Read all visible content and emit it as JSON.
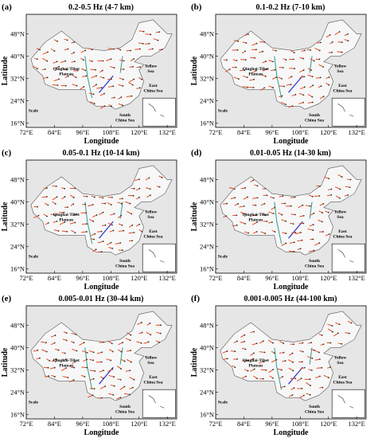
{
  "panels": [
    {
      "label": "(a)",
      "title": "0.2-0.5 Hz (4-7 km)"
    },
    {
      "label": "(b)",
      "title": "0.1-0.2 Hz (7-10 km)"
    },
    {
      "label": "(c)",
      "title": "0.05-0.1 Hz (10-14 km)"
    },
    {
      "label": "(d)",
      "title": "0.01-0.05 Hz (14-30 km)"
    },
    {
      "label": "(e)",
      "title": "0.005-0.01 Hz (30-44 km)"
    },
    {
      "label": "(f)",
      "title": "0.001-0.005 Hz (44-100 km)"
    }
  ],
  "axes": {
    "xlabel": "Longitude",
    "ylabel": "Latitude",
    "xticks": [
      "72°E",
      "84°E",
      "96°E",
      "108°E",
      "120°E",
      "132°E"
    ],
    "yticks": [
      "48°N",
      "40°N",
      "32°N",
      "24°N",
      "16°N"
    ]
  },
  "map_labels": {
    "plateau": [
      "Qinghai-Tibet",
      "Plateau"
    ],
    "yellow_sea": [
      "Yellow",
      "Sea"
    ],
    "east_china_sea": [
      "East",
      "China Sea"
    ],
    "south_china_sea": [
      "South",
      "China Sea"
    ],
    "scale": "Scale"
  }
}
